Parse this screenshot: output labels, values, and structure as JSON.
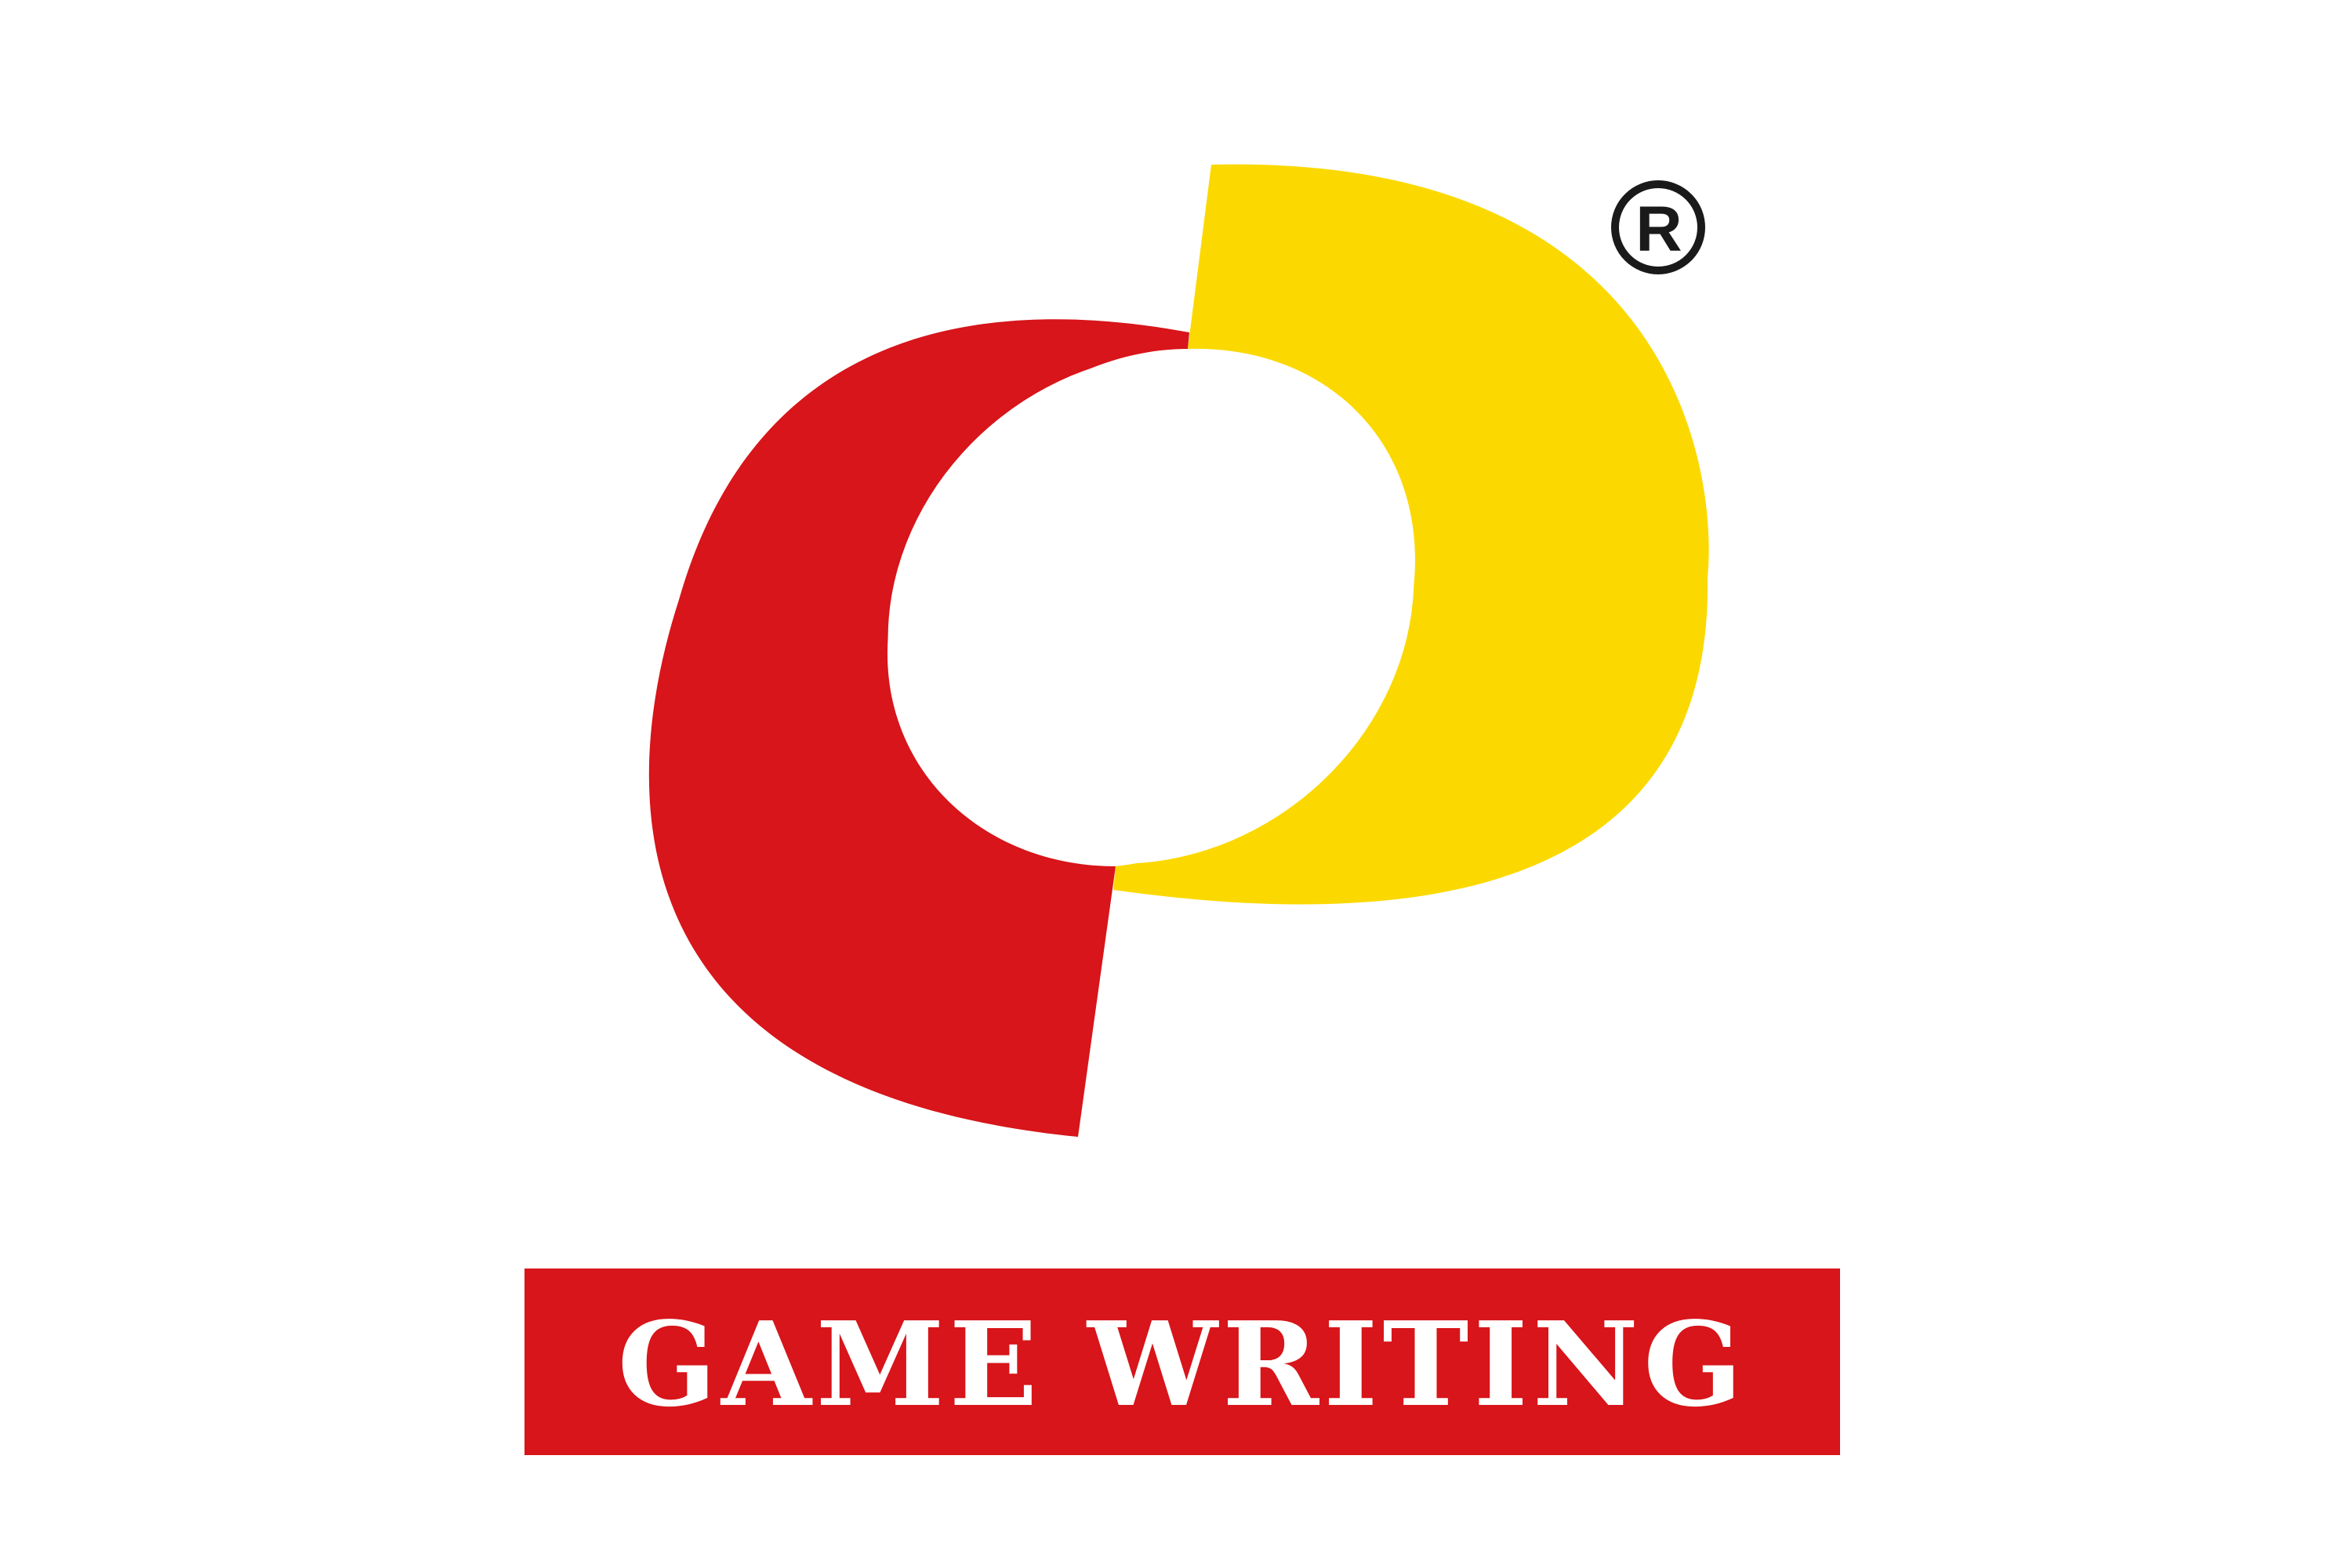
{
  "brand": {
    "wordmark": "GAME WRITING",
    "registered_symbol": "R",
    "colors": {
      "red": "#d7151a",
      "yellow": "#fbd900",
      "white": "#ffffff",
      "dark": "#1a1a1a"
    }
  }
}
